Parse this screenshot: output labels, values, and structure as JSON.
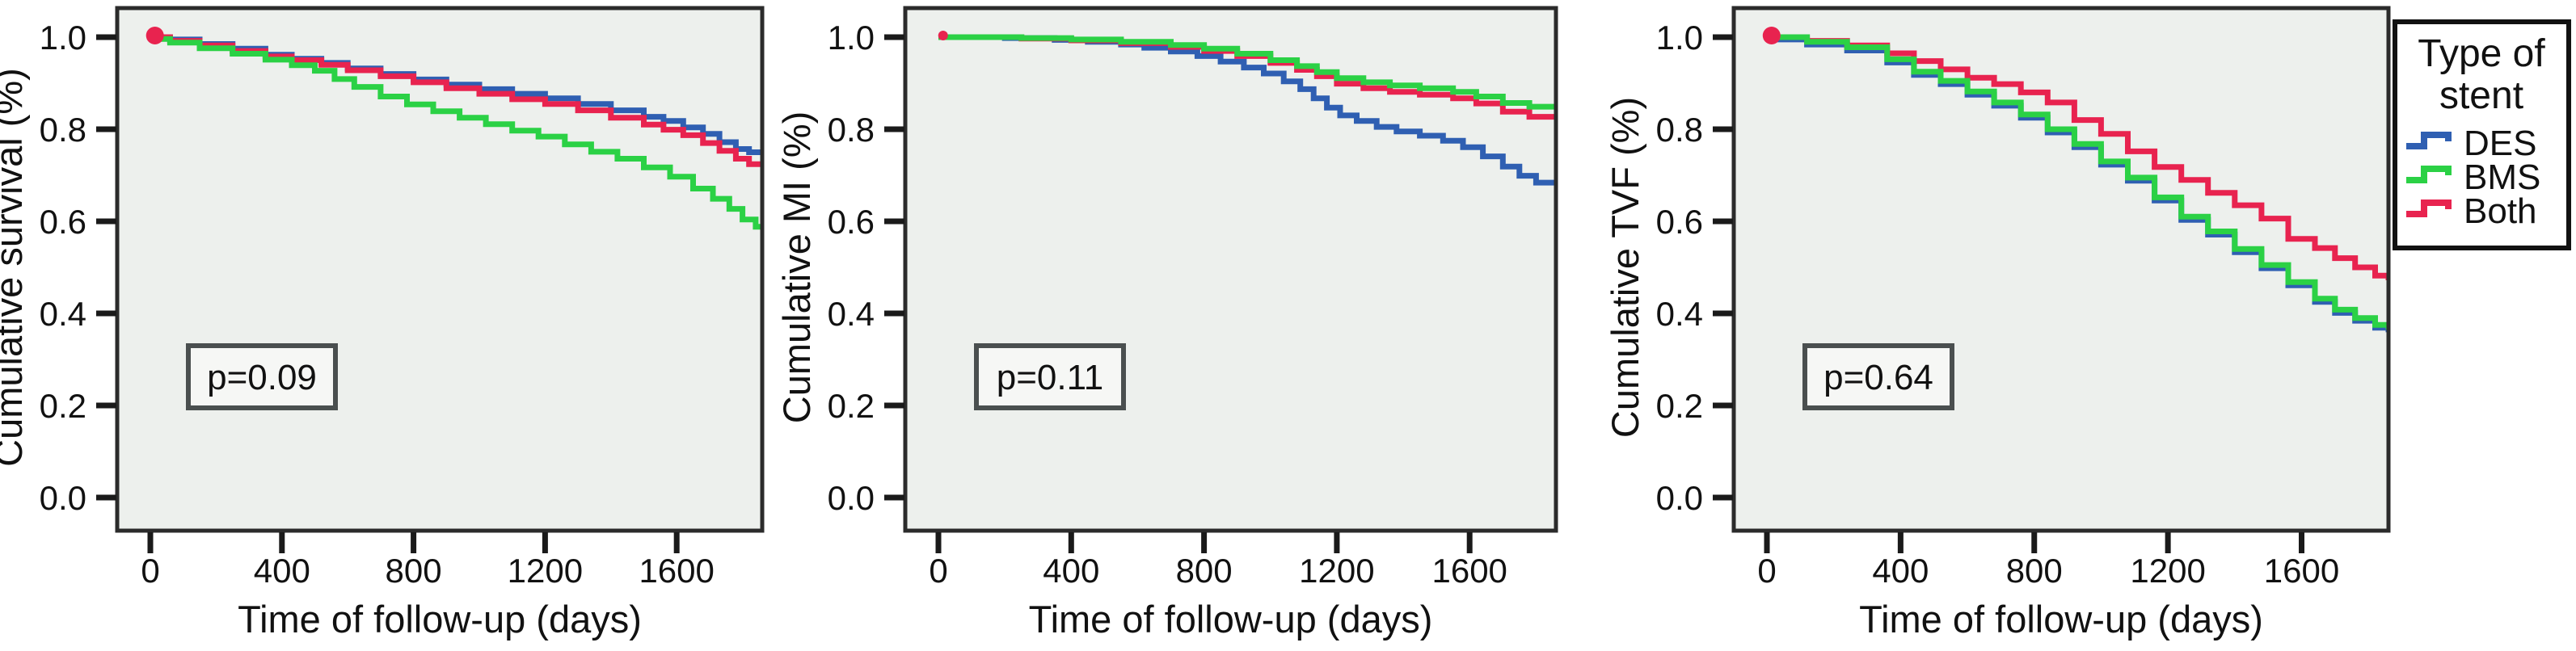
{
  "figure": {
    "background": "#ffffff",
    "plot_background": "#edf0ed",
    "axis_color": "#2b2b2b",
    "tick_color": "#1a1a1a",
    "pbox_border": "#4a4f4f",
    "pbox_fill": "#f6f7f5"
  },
  "legend": {
    "title_lines": [
      "Type of",
      "stent"
    ],
    "items": [
      {
        "label": "DES",
        "color": "#2f5fb2"
      },
      {
        "label": "BMS",
        "color": "#2bd145"
      },
      {
        "label": "Both",
        "color": "#e8234f"
      }
    ]
  },
  "chart_data": [
    {
      "type": "line",
      "subtype": "kaplan-meier-step",
      "ylabel": "Cumulative survival (%)",
      "xlabel": "Time of follow-up (days)",
      "annotation": "p=0.09",
      "xlim": [
        0,
        1860
      ],
      "ylim": [
        0.0,
        1.0
      ],
      "xticks": [
        0,
        400,
        800,
        1200,
        1600
      ],
      "yticks": [
        1.0,
        0.8,
        0.6,
        0.4,
        0.2,
        0.0
      ],
      "ytick_labels": [
        "1.0",
        "0.8",
        "0.6",
        "0.4",
        "0.2",
        "0.0"
      ],
      "grid": false,
      "legend_position": "outside-figure-right",
      "series": [
        {
          "name": "DES",
          "color": "#2f5fb2",
          "points": [
            [
              0,
              1.0
            ],
            [
              60,
              0.995
            ],
            [
              150,
              0.985
            ],
            [
              250,
              0.975
            ],
            [
              350,
              0.962
            ],
            [
              430,
              0.953
            ],
            [
              520,
              0.944
            ],
            [
              600,
              0.932
            ],
            [
              700,
              0.92
            ],
            [
              800,
              0.908
            ],
            [
              900,
              0.897
            ],
            [
              1000,
              0.887
            ],
            [
              1100,
              0.877
            ],
            [
              1200,
              0.867
            ],
            [
              1300,
              0.855
            ],
            [
              1400,
              0.841
            ],
            [
              1500,
              0.827
            ],
            [
              1560,
              0.818
            ],
            [
              1620,
              0.804
            ],
            [
              1680,
              0.79
            ],
            [
              1730,
              0.772
            ],
            [
              1780,
              0.757
            ],
            [
              1820,
              0.75
            ],
            [
              1860,
              0.747
            ]
          ]
        },
        {
          "name": "Both",
          "color": "#e8234f",
          "points": [
            [
              0,
              1.0
            ],
            [
              60,
              0.992
            ],
            [
              150,
              0.982
            ],
            [
              250,
              0.97
            ],
            [
              350,
              0.958
            ],
            [
              430,
              0.95
            ],
            [
              520,
              0.94
            ],
            [
              600,
              0.928
            ],
            [
              700,
              0.915
            ],
            [
              800,
              0.902
            ],
            [
              900,
              0.889
            ],
            [
              1000,
              0.877
            ],
            [
              1100,
              0.865
            ],
            [
              1200,
              0.855
            ],
            [
              1300,
              0.841
            ],
            [
              1400,
              0.825
            ],
            [
              1500,
              0.81
            ],
            [
              1560,
              0.799
            ],
            [
              1620,
              0.787
            ],
            [
              1680,
              0.77
            ],
            [
              1730,
              0.753
            ],
            [
              1780,
              0.736
            ],
            [
              1820,
              0.724
            ],
            [
              1860,
              0.72
            ]
          ]
        },
        {
          "name": "BMS",
          "color": "#2bd145",
          "points": [
            [
              0,
              0.996
            ],
            [
              60,
              0.988
            ],
            [
              150,
              0.976
            ],
            [
              250,
              0.964
            ],
            [
              350,
              0.951
            ],
            [
              430,
              0.939
            ],
            [
              500,
              0.927
            ],
            [
              560,
              0.909
            ],
            [
              620,
              0.892
            ],
            [
              700,
              0.871
            ],
            [
              780,
              0.854
            ],
            [
              860,
              0.839
            ],
            [
              940,
              0.825
            ],
            [
              1020,
              0.811
            ],
            [
              1100,
              0.797
            ],
            [
              1180,
              0.784
            ],
            [
              1260,
              0.767
            ],
            [
              1340,
              0.751
            ],
            [
              1420,
              0.736
            ],
            [
              1500,
              0.717
            ],
            [
              1580,
              0.697
            ],
            [
              1650,
              0.671
            ],
            [
              1710,
              0.649
            ],
            [
              1760,
              0.627
            ],
            [
              1800,
              0.604
            ],
            [
              1840,
              0.588
            ],
            [
              1860,
              0.582
            ]
          ]
        }
      ]
    },
    {
      "type": "line",
      "subtype": "kaplan-meier-step",
      "ylabel": "Cumulative MI (%)",
      "xlabel": "Time of follow-up (days)",
      "annotation": "p=0.11",
      "xlim": [
        0,
        1860
      ],
      "ylim": [
        0.0,
        1.0
      ],
      "xticks": [
        0,
        400,
        800,
        1200,
        1600
      ],
      "yticks": [
        1.0,
        0.8,
        0.6,
        0.4,
        0.2,
        0.0
      ],
      "ytick_labels": [
        "1.0",
        "0.8",
        "0.6",
        "0.4",
        "0.2",
        "0.0"
      ],
      "grid": false,
      "legend_position": "outside-figure-right",
      "series": [
        {
          "name": "DES",
          "color": "#2f5fb2",
          "points": [
            [
              0,
              1.0
            ],
            [
              200,
              0.998
            ],
            [
              350,
              0.994
            ],
            [
              450,
              0.99
            ],
            [
              550,
              0.984
            ],
            [
              620,
              0.977
            ],
            [
              700,
              0.969
            ],
            [
              780,
              0.959
            ],
            [
              850,
              0.947
            ],
            [
              920,
              0.934
            ],
            [
              980,
              0.921
            ],
            [
              1040,
              0.904
            ],
            [
              1090,
              0.887
            ],
            [
              1130,
              0.867
            ],
            [
              1170,
              0.847
            ],
            [
              1210,
              0.83
            ],
            [
              1260,
              0.818
            ],
            [
              1320,
              0.805
            ],
            [
              1380,
              0.795
            ],
            [
              1450,
              0.786
            ],
            [
              1520,
              0.775
            ],
            [
              1580,
              0.761
            ],
            [
              1640,
              0.741
            ],
            [
              1700,
              0.719
            ],
            [
              1750,
              0.699
            ],
            [
              1800,
              0.684
            ],
            [
              1860,
              0.681
            ]
          ]
        },
        {
          "name": "Both",
          "color": "#e8234f",
          "points": [
            [
              0,
              1.0
            ],
            [
              250,
              0.997
            ],
            [
              400,
              0.993
            ],
            [
              550,
              0.987
            ],
            [
              700,
              0.979
            ],
            [
              800,
              0.97
            ],
            [
              900,
              0.959
            ],
            [
              1000,
              0.944
            ],
            [
              1080,
              0.929
            ],
            [
              1140,
              0.915
            ],
            [
              1200,
              0.899
            ],
            [
              1280,
              0.889
            ],
            [
              1360,
              0.881
            ],
            [
              1450,
              0.875
            ],
            [
              1550,
              0.867
            ],
            [
              1620,
              0.856
            ],
            [
              1700,
              0.838
            ],
            [
              1780,
              0.827
            ],
            [
              1860,
              0.823
            ]
          ]
        },
        {
          "name": "BMS",
          "color": "#2bd145",
          "points": [
            [
              0,
              1.0
            ],
            [
              250,
              0.998
            ],
            [
              400,
              0.995
            ],
            [
              550,
              0.99
            ],
            [
              700,
              0.983
            ],
            [
              800,
              0.975
            ],
            [
              900,
              0.964
            ],
            [
              1000,
              0.95
            ],
            [
              1080,
              0.937
            ],
            [
              1140,
              0.924
            ],
            [
              1200,
              0.911
            ],
            [
              1280,
              0.902
            ],
            [
              1360,
              0.895
            ],
            [
              1450,
              0.889
            ],
            [
              1550,
              0.881
            ],
            [
              1620,
              0.871
            ],
            [
              1700,
              0.857
            ],
            [
              1780,
              0.849
            ],
            [
              1860,
              0.846
            ]
          ]
        }
      ]
    },
    {
      "type": "line",
      "subtype": "kaplan-meier-step",
      "ylabel": "Cumulative TVF (%)",
      "xlabel": "Time of follow-up (days)",
      "annotation": "p=0.64",
      "xlim": [
        0,
        1860
      ],
      "ylim": [
        0.0,
        1.0
      ],
      "xticks": [
        0,
        400,
        800,
        1200,
        1600
      ],
      "yticks": [
        1.0,
        0.8,
        0.6,
        0.4,
        0.2,
        0.0
      ],
      "ytick_labels": [
        "1.0",
        "0.8",
        "0.6",
        "0.4",
        "0.2",
        "0.0"
      ],
      "grid": false,
      "legend_position": "outside-plot-top-right",
      "series": [
        {
          "name": "DES",
          "color": "#2f5fb2",
          "points": [
            [
              0,
              0.995
            ],
            [
              120,
              0.984
            ],
            [
              240,
              0.971
            ],
            [
              360,
              0.945
            ],
            [
              440,
              0.918
            ],
            [
              520,
              0.898
            ],
            [
              600,
              0.875
            ],
            [
              680,
              0.851
            ],
            [
              760,
              0.825
            ],
            [
              840,
              0.793
            ],
            [
              920,
              0.761
            ],
            [
              1000,
              0.723
            ],
            [
              1080,
              0.688
            ],
            [
              1160,
              0.645
            ],
            [
              1240,
              0.603
            ],
            [
              1320,
              0.571
            ],
            [
              1400,
              0.533
            ],
            [
              1480,
              0.498
            ],
            [
              1560,
              0.461
            ],
            [
              1640,
              0.425
            ],
            [
              1700,
              0.401
            ],
            [
              1760,
              0.384
            ],
            [
              1820,
              0.369
            ],
            [
              1860,
              0.359
            ]
          ]
        },
        {
          "name": "Both",
          "color": "#e8234f",
          "points": [
            [
              0,
              1.0
            ],
            [
              120,
              0.992
            ],
            [
              240,
              0.982
            ],
            [
              360,
              0.965
            ],
            [
              440,
              0.948
            ],
            [
              520,
              0.93
            ],
            [
              600,
              0.912
            ],
            [
              680,
              0.898
            ],
            [
              760,
              0.88
            ],
            [
              840,
              0.858
            ],
            [
              920,
              0.82
            ],
            [
              1000,
              0.79
            ],
            [
              1080,
              0.752
            ],
            [
              1160,
              0.718
            ],
            [
              1240,
              0.69
            ],
            [
              1320,
              0.662
            ],
            [
              1400,
              0.635
            ],
            [
              1480,
              0.606
            ],
            [
              1560,
              0.562
            ],
            [
              1640,
              0.542
            ],
            [
              1700,
              0.52
            ],
            [
              1760,
              0.5
            ],
            [
              1820,
              0.482
            ],
            [
              1860,
              0.472
            ]
          ]
        },
        {
          "name": "BMS",
          "color": "#2bd145",
          "points": [
            [
              0,
              1.0
            ],
            [
              120,
              0.99
            ],
            [
              240,
              0.978
            ],
            [
              360,
              0.952
            ],
            [
              440,
              0.925
            ],
            [
              520,
              0.905
            ],
            [
              600,
              0.882
            ],
            [
              680,
              0.858
            ],
            [
              760,
              0.832
            ],
            [
              840,
              0.8
            ],
            [
              920,
              0.768
            ],
            [
              1000,
              0.73
            ],
            [
              1080,
              0.695
            ],
            [
              1160,
              0.652
            ],
            [
              1240,
              0.61
            ],
            [
              1320,
              0.578
            ],
            [
              1400,
              0.54
            ],
            [
              1480,
              0.505
            ],
            [
              1560,
              0.468
            ],
            [
              1640,
              0.432
            ],
            [
              1700,
              0.408
            ],
            [
              1760,
              0.39
            ],
            [
              1820,
              0.375
            ],
            [
              1860,
              0.365
            ]
          ]
        }
      ]
    }
  ]
}
